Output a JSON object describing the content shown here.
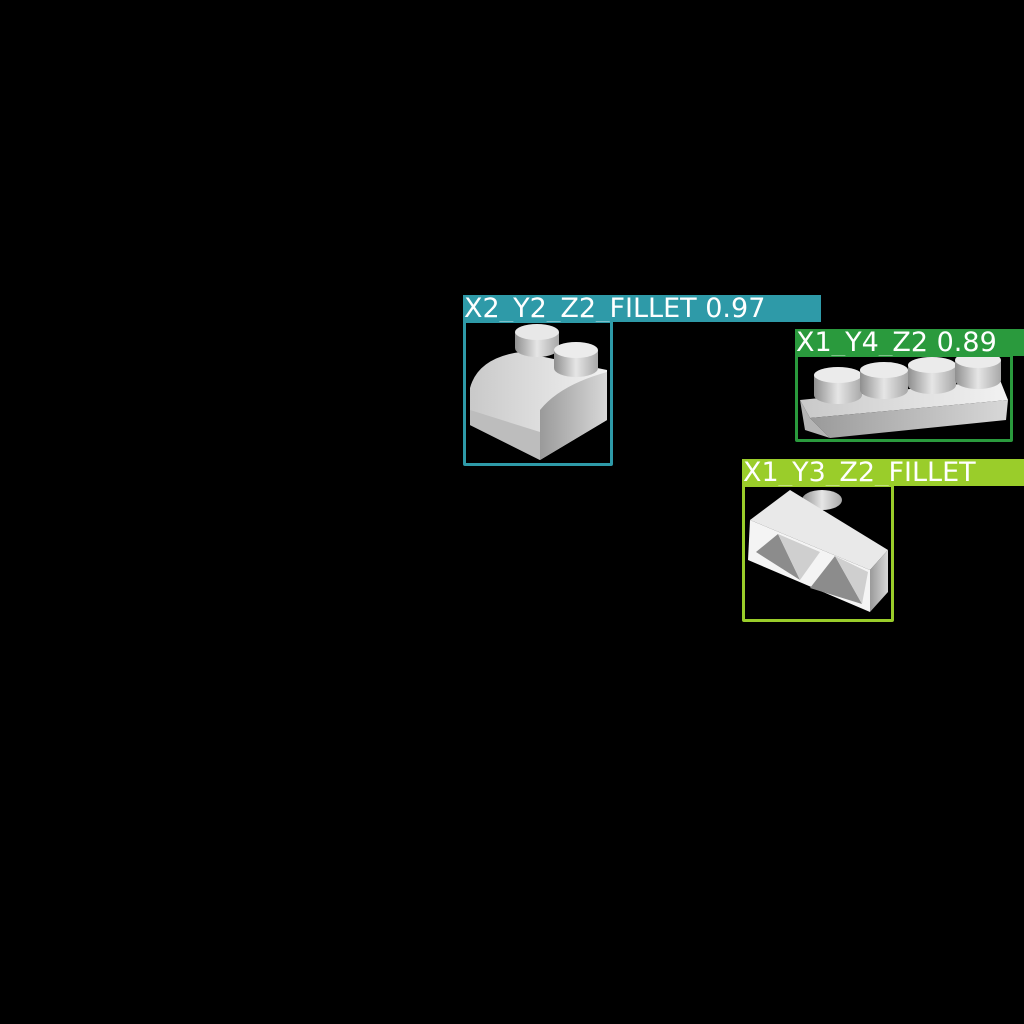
{
  "detections": [
    {
      "class_label": "X2_Y2_Z2_FILLET",
      "score": "0.97",
      "color": "#2e9aa8"
    },
    {
      "class_label": "X1_Y4_Z2",
      "score": "0.89",
      "color": "#2a9a3d"
    },
    {
      "class_label": "X1_Y3_Z2_FILLET",
      "score": "",
      "color": "#9acd2a"
    }
  ]
}
